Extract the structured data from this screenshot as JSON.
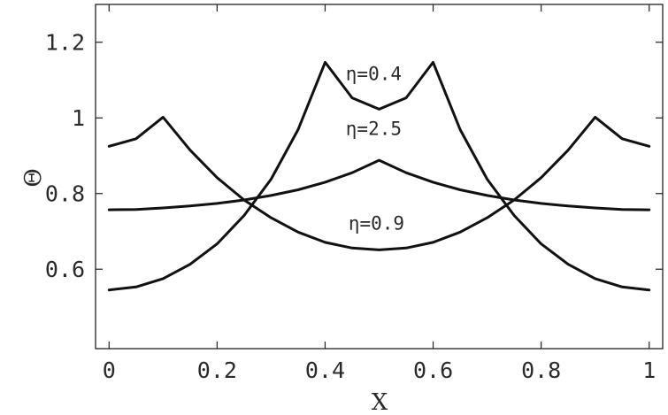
{
  "chart_data": {
    "type": "line",
    "title": "",
    "xlabel": "X",
    "ylabel": "Θ",
    "xlim": [
      -0.025,
      1.025
    ],
    "ylim": [
      0.39,
      1.3
    ],
    "x_ticks": [
      0,
      0.2,
      0.4,
      0.6,
      0.8,
      1
    ],
    "x_tick_labels": [
      "0",
      "0.2",
      "0.4",
      "0.6",
      "0.8",
      "1"
    ],
    "y_ticks": [
      0.6,
      0.8,
      1.0,
      1.2
    ],
    "y_tick_labels": [
      "0.6",
      "0.8",
      "1",
      "1.2"
    ],
    "grid": false,
    "series": [
      {
        "label": "η=0.4",
        "x": [
          0,
          0.05,
          0.1,
          0.15,
          0.2,
          0.25,
          0.3,
          0.35,
          0.4,
          0.45,
          0.5,
          0.55,
          0.6,
          0.65,
          0.7,
          0.75,
          0.8,
          0.85,
          0.9,
          0.95,
          1
        ],
        "y": [
          0.545,
          0.553,
          0.575,
          0.613,
          0.667,
          0.742,
          0.838,
          0.969,
          1.147,
          1.053,
          1.023,
          1.053,
          1.147,
          0.969,
          0.838,
          0.742,
          0.667,
          0.613,
          0.575,
          0.553,
          0.545
        ]
      },
      {
        "label": "η=0.9",
        "x": [
          0,
          0.05,
          0.1,
          0.15,
          0.2,
          0.25,
          0.3,
          0.35,
          0.4,
          0.45,
          0.5,
          0.55,
          0.6,
          0.65,
          0.7,
          0.75,
          0.8,
          0.85,
          0.9,
          0.95,
          1
        ],
        "y": [
          0.925,
          0.945,
          1.002,
          0.915,
          0.842,
          0.783,
          0.736,
          0.698,
          0.671,
          0.656,
          0.651,
          0.656,
          0.671,
          0.698,
          0.736,
          0.783,
          0.842,
          0.915,
          1.002,
          0.945,
          0.925
        ]
      },
      {
        "label": "η=2.5",
        "x": [
          0,
          0.05,
          0.1,
          0.15,
          0.2,
          0.25,
          0.3,
          0.35,
          0.4,
          0.45,
          0.5,
          0.55,
          0.6,
          0.65,
          0.7,
          0.75,
          0.8,
          0.85,
          0.9,
          0.95,
          1
        ],
        "y": [
          0.757,
          0.758,
          0.762,
          0.767,
          0.774,
          0.783,
          0.795,
          0.81,
          0.83,
          0.855,
          0.888,
          0.855,
          0.83,
          0.81,
          0.795,
          0.783,
          0.774,
          0.767,
          0.762,
          0.758,
          0.757
        ]
      }
    ],
    "annotations": [
      {
        "text": "η=0.4",
        "x": 0.49,
        "y": 1.1
      },
      {
        "text": "η=2.5",
        "x": 0.49,
        "y": 0.955
      },
      {
        "text": "η=0.9",
        "x": 0.495,
        "y": 0.705
      }
    ]
  }
}
